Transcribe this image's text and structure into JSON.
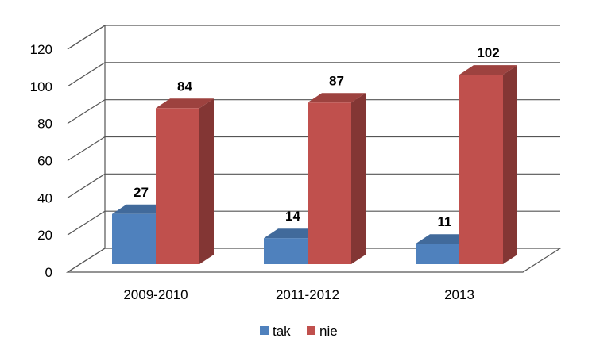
{
  "chart_data": {
    "type": "bar",
    "title": "",
    "xlabel": "",
    "ylabel": "",
    "categories": [
      "2009-2010",
      "2011-2012",
      "2013"
    ],
    "series": [
      {
        "name": "tak",
        "values": [
          27,
          14,
          11
        ],
        "color": "#4F81BD"
      },
      {
        "name": "nie",
        "values": [
          84,
          87,
          102
        ],
        "color": "#C0504D"
      }
    ],
    "ylim": [
      0,
      120
    ],
    "yticks": [
      0,
      20,
      40,
      60,
      80,
      100,
      120
    ],
    "grid": true,
    "legend_position": "bottom",
    "style": "3d-clustered-column"
  }
}
